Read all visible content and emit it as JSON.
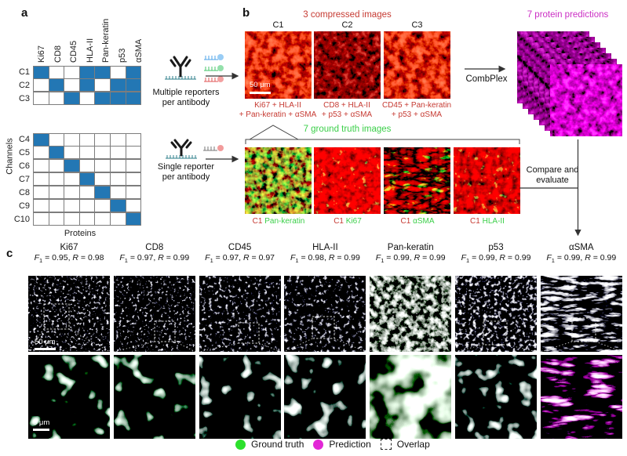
{
  "figure": {
    "panel_a_label": "a",
    "panel_b_label": "b",
    "panel_c_label": "c"
  },
  "panel_a": {
    "proteins": [
      "Ki67",
      "CD8",
      "CD45",
      "HLA-II",
      "Pan-keratin",
      "p53",
      "αSMA"
    ],
    "axis_channels": "Channels",
    "axis_proteins": "Proteins",
    "cell_color": "#2377b4",
    "compressed_matrix": {
      "rows": [
        {
          "channel": "C1",
          "cells": [
            1,
            0,
            0,
            1,
            1,
            0,
            1
          ]
        },
        {
          "channel": "C2",
          "cells": [
            0,
            1,
            0,
            1,
            0,
            1,
            1
          ]
        },
        {
          "channel": "C3",
          "cells": [
            0,
            0,
            1,
            0,
            1,
            1,
            1
          ]
        }
      ]
    },
    "single_matrix": {
      "rows": [
        {
          "channel": "C4",
          "cells": [
            1,
            0,
            0,
            0,
            0,
            0,
            0
          ]
        },
        {
          "channel": "C5",
          "cells": [
            0,
            1,
            0,
            0,
            0,
            0,
            0
          ]
        },
        {
          "channel": "C6",
          "cells": [
            0,
            0,
            1,
            0,
            0,
            0,
            0
          ]
        },
        {
          "channel": "C7",
          "cells": [
            0,
            0,
            0,
            1,
            0,
            0,
            0
          ]
        },
        {
          "channel": "C8",
          "cells": [
            0,
            0,
            0,
            0,
            1,
            0,
            0
          ]
        },
        {
          "channel": "C9",
          "cells": [
            0,
            0,
            0,
            0,
            0,
            1,
            0
          ]
        },
        {
          "channel": "C10",
          "cells": [
            0,
            0,
            0,
            0,
            0,
            0,
            1
          ]
        }
      ]
    },
    "multiple_reporters_caption": [
      "Multiple reporters",
      "per antibody"
    ],
    "single_reporter_caption": [
      "Single reporter",
      "per antibody"
    ],
    "icons": {
      "multi": "antibody-with-3-reporters",
      "single": "antibody-with-1-reporter"
    }
  },
  "panel_b": {
    "compressed_title": "3 compressed images",
    "channels": [
      "C1",
      "C2",
      "C3"
    ],
    "compressed_captions": [
      [
        "Ki67 + HLA-II",
        "+ Pan-keratin + αSMA"
      ],
      [
        "CD8 + HLA-II",
        "+ p53 + αSMA"
      ],
      [
        "CD45 + Pan-keratin",
        "+ p53 + αSMA"
      ]
    ],
    "scale_bar": "50 μm",
    "combplex": "CombPlex",
    "predictions_title": "7 protein predictions",
    "ground_truth_title": "7 ground truth images",
    "ground_truth_labels": [
      {
        "channel": "C1",
        "protein": "Pan-keratin"
      },
      {
        "channel": "C1",
        "protein": "Ki67"
      },
      {
        "channel": "C1",
        "protein": "αSMA"
      },
      {
        "channel": "C1",
        "protein": "HLA-II"
      }
    ],
    "compare_caption": [
      "Compare and",
      "evaluate"
    ],
    "red": "#c63a32",
    "magenta": "#cb2fc4",
    "green": "#3bcf49"
  },
  "panel_c": {
    "f_sym": "F",
    "f_sub": "1",
    "r_sym": "R",
    "eq": " = ",
    "sep": ", ",
    "columns": [
      {
        "protein": "Ki67",
        "f1": "0.95",
        "r": "0.98"
      },
      {
        "protein": "CD8",
        "f1": "0.97",
        "r": "0.99"
      },
      {
        "protein": "CD45",
        "f1": "0.97",
        "r": "0.97"
      },
      {
        "protein": "HLA-II",
        "f1": "0.98",
        "r": "0.99"
      },
      {
        "protein": "Pan-keratin",
        "f1": "0.99",
        "r": "0.99"
      },
      {
        "protein": "p53",
        "f1": "0.99",
        "r": "0.99"
      },
      {
        "protein": "αSMA",
        "f1": "0.99",
        "r": "0.99"
      }
    ],
    "scale_bar_top": "50 μm",
    "scale_bar_bottom": "5 μm",
    "legend": {
      "ground_truth": "Ground truth",
      "prediction": "Prediction",
      "overlap": "Overlap",
      "ground_truth_color": "#2ce02c",
      "prediction_color": "#e227d6"
    }
  }
}
